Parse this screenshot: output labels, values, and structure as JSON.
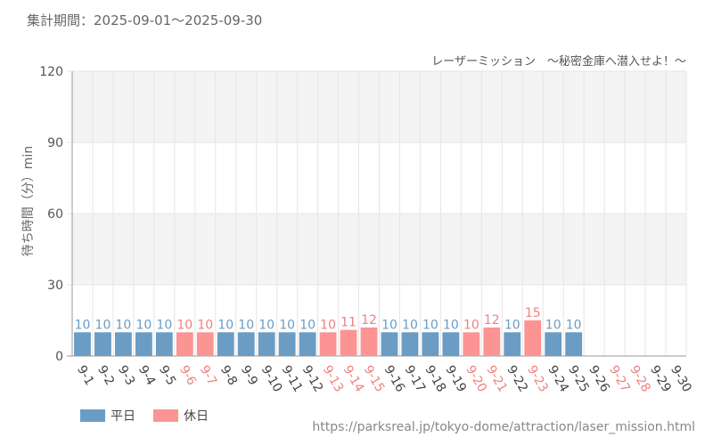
{
  "header": {
    "period": "集計期間：2025-09-01～2025-09-30"
  },
  "chart_data": {
    "type": "bar",
    "title": "レーザーミッション　～秘密金庫へ潜入せよ！～",
    "ylabel": "待ち時間（分）min",
    "xlabel": "",
    "ylim": [
      0,
      120
    ],
    "yticks": [
      0,
      30,
      60,
      90,
      120
    ],
    "categories": [
      "9-1",
      "9-2",
      "9-3",
      "9-4",
      "9-5",
      "9-6",
      "9-7",
      "9-8",
      "9-9",
      "9-10",
      "9-11",
      "9-12",
      "9-13",
      "9-14",
      "9-15",
      "9-16",
      "9-17",
      "9-18",
      "9-19",
      "9-20",
      "9-21",
      "9-22",
      "9-23",
      "9-24",
      "9-25",
      "9-26",
      "9-27",
      "9-28",
      "9-29",
      "9-30"
    ],
    "values": [
      10,
      10,
      10,
      10,
      10,
      10,
      10,
      10,
      10,
      10,
      10,
      10,
      10,
      11,
      12,
      10,
      10,
      10,
      10,
      10,
      12,
      10,
      15,
      10,
      10,
      null,
      null,
      null,
      null,
      null
    ],
    "day_type": [
      "weekday",
      "weekday",
      "weekday",
      "weekday",
      "weekday",
      "holiday",
      "holiday",
      "weekday",
      "weekday",
      "weekday",
      "weekday",
      "weekday",
      "holiday",
      "holiday",
      "holiday",
      "weekday",
      "weekday",
      "weekday",
      "weekday",
      "holiday",
      "holiday",
      "weekday",
      "holiday",
      "weekday",
      "weekday",
      "weekday",
      "holiday",
      "holiday",
      "weekday",
      "weekday"
    ],
    "colors": {
      "weekday": "#6b9cc4",
      "holiday": "#fc9494",
      "weekday_label": "#555555",
      "holiday_label": "#f08080",
      "grid": "#e6e6e6",
      "band": "#f4f4f4"
    },
    "legend": [
      {
        "key": "weekday",
        "label": "平日"
      },
      {
        "key": "holiday",
        "label": "休日"
      }
    ],
    "legend_position": "bottom-left"
  },
  "footer": {
    "source": "https://parksreal.jp/tokyo-dome/attraction/laser_mission.html"
  }
}
